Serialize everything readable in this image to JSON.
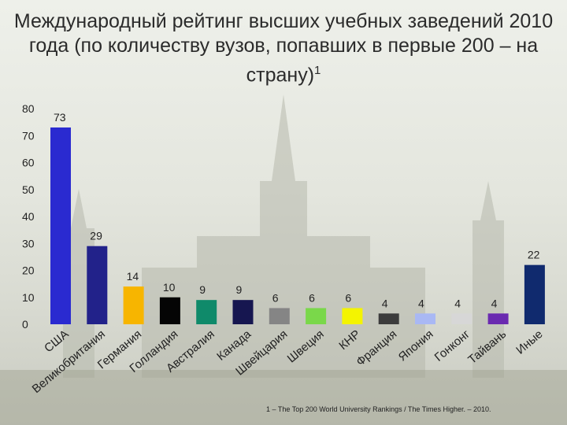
{
  "title": "Международный рейтинг высших учебных заведений 2010 года (по количеству вузов, попавших в первые 200 – на страну)",
  "title_superscript": "1",
  "footnote": "1 – The Top 200 World University Rankings / The Times Higher. – 2010.",
  "chart_data": {
    "type": "bar",
    "categories": [
      "США",
      "Великобритания",
      "Германия",
      "Голландия",
      "Австралия",
      "Канада",
      "Швейцария",
      "Швеция",
      "КНР",
      "Франция",
      "Япония",
      "Гонконг",
      "Тайвань",
      "Иные"
    ],
    "values": [
      73,
      29,
      14,
      10,
      9,
      9,
      6,
      6,
      6,
      4,
      4,
      4,
      4,
      22
    ],
    "colors": [
      "#2a2ad0",
      "#22228a",
      "#f7b500",
      "#050505",
      "#0f8a6a",
      "#161650",
      "#858585",
      "#7ad84a",
      "#f4f400",
      "#3c3c3c",
      "#a9b8f4",
      "#d7d7d7",
      "#6a2ab0",
      "#102a6e"
    ],
    "ylim": [
      0,
      80
    ],
    "yticks": [
      0,
      10,
      20,
      30,
      40,
      50,
      60,
      70,
      80
    ],
    "xlabel": "",
    "ylabel": "",
    "grid": false,
    "legend": "none"
  }
}
